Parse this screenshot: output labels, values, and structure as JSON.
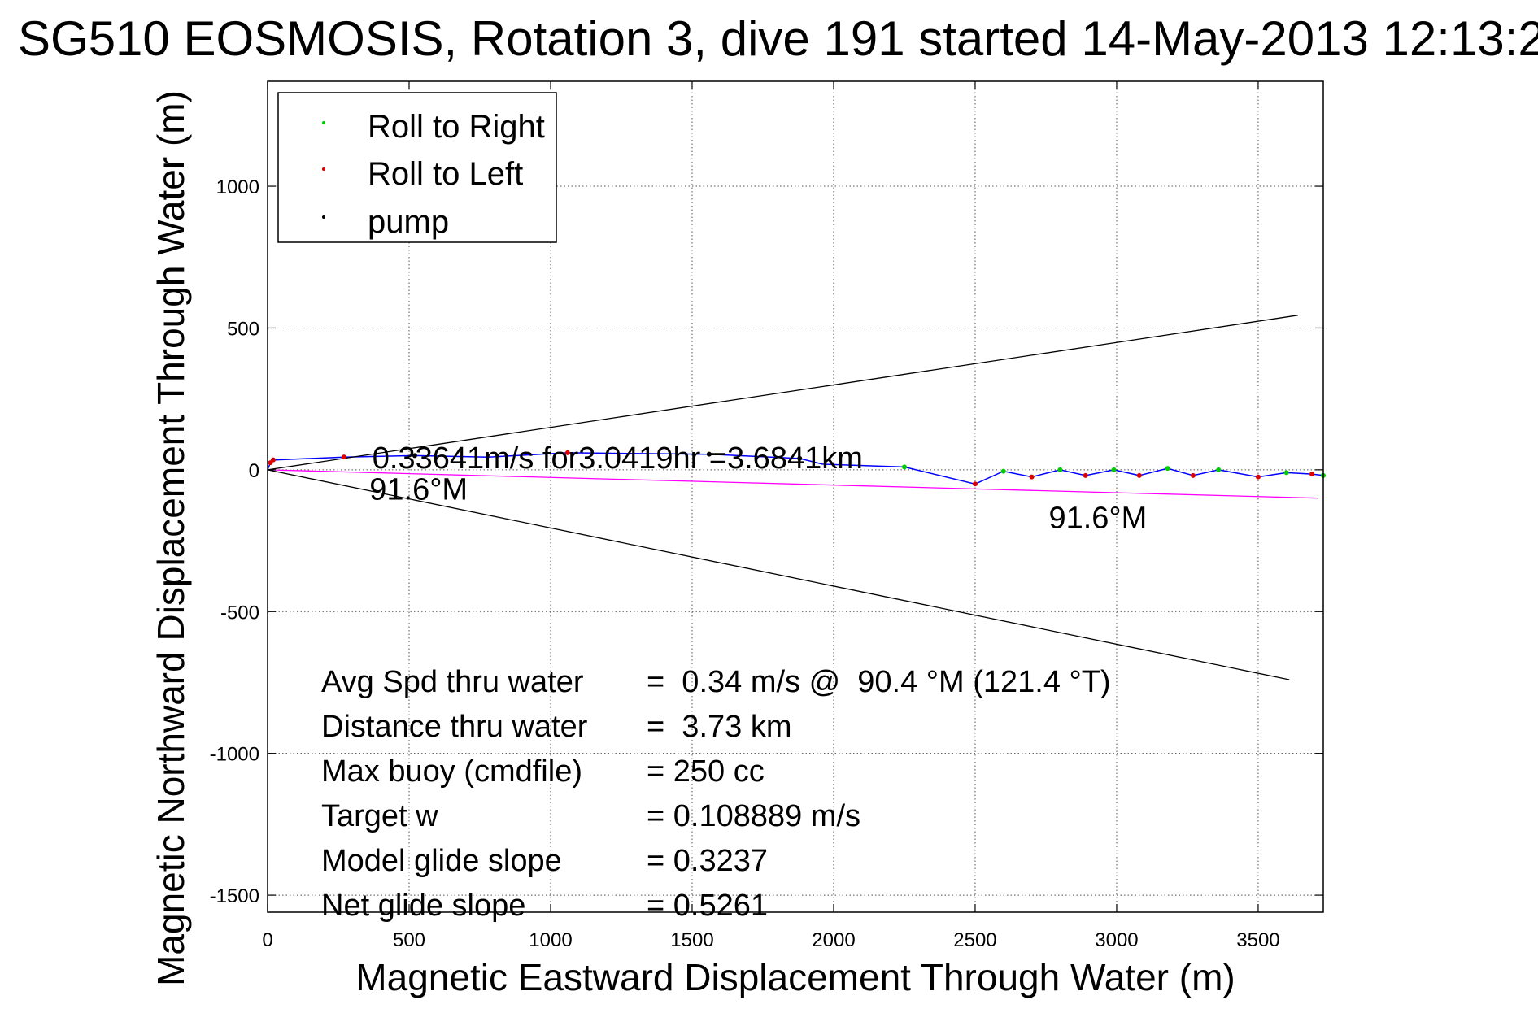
{
  "chart_data": {
    "type": "line",
    "title": "SG510 EOSMOSIS, Rotation 3, dive 191 started 14-May-2013 12:13:2",
    "xlabel": "Magnetic Eastward Displacement Through Water (m)",
    "ylabel": "Magnetic Northward Displacement Through Water (m)",
    "xlim": [
      0,
      3730
    ],
    "ylim": [
      -1560,
      1370
    ],
    "x_ticks": [
      0,
      500,
      1000,
      1500,
      2000,
      2500,
      3000,
      3500
    ],
    "y_ticks": [
      -1500,
      -1000,
      -500,
      0,
      500,
      1000
    ],
    "grid": true,
    "legend_position": "top-left",
    "legend": [
      {
        "label": "Roll to Right",
        "color": "#00cc00"
      },
      {
        "label": "Roll to Left",
        "color": "#dd0000"
      },
      {
        "label": "pump",
        "color": "#000000"
      }
    ],
    "series": [
      {
        "color": "#0000ff",
        "x": [
          0,
          8,
          18,
          28,
          270,
          520,
          780,
          1060,
          1560,
          1880,
          1960,
          2250,
          2500,
          2600,
          2700,
          2800,
          2890,
          2990,
          3080,
          3180,
          3270,
          3360,
          3500,
          3600,
          3690,
          3730
        ],
        "y": [
          0,
          20,
          40,
          35,
          45,
          50,
          45,
          60,
          55,
          40,
          20,
          10,
          -50,
          -5,
          -25,
          0,
          -20,
          0,
          -20,
          5,
          -20,
          0,
          -25,
          -10,
          -15,
          -20
        ]
      },
      {
        "color": "#ff00ff",
        "x": [
          0,
          3710
        ],
        "y": [
          0,
          -100
        ]
      },
      {
        "color": "#000000",
        "x": [
          0,
          3640
        ],
        "y": [
          0,
          545
        ]
      },
      {
        "color": "#000000",
        "x": [
          0,
          3610
        ],
        "y": [
          0,
          -740
        ]
      }
    ],
    "markers": {
      "roll_right": {
        "color": "#00cc00",
        "x": [
          2250,
          2600,
          2800,
          2990,
          3180,
          3360,
          3600,
          3730
        ],
        "y": [
          10,
          -5,
          0,
          0,
          5,
          0,
          -10,
          -20
        ]
      },
      "roll_left": {
        "color": "#dd0000",
        "x": [
          10,
          20,
          270,
          1060,
          2500,
          2700,
          2890,
          3080,
          3270,
          3500,
          3690
        ],
        "y": [
          25,
          35,
          45,
          60,
          -50,
          -25,
          -20,
          -20,
          -20,
          -25,
          -15
        ]
      },
      "pump": {
        "color": "#000000",
        "x": [
          520,
          1560,
          1880
        ],
        "y": [
          50,
          55,
          40
        ]
      }
    },
    "annotations": [
      {
        "text": "0.33641m/s for3.0419hr =3.6841km",
        "x": 370,
        "y": 5
      },
      {
        "text": "91.6°M",
        "x": 360,
        "y": -105
      },
      {
        "text": "91.6°M",
        "x": 2760,
        "y": -205
      }
    ],
    "stats": [
      {
        "label": "Avg Spd thru water",
        "value": "=  0.34 m/s @  90.4 °M (121.4 °T)"
      },
      {
        "label": "Distance thru water",
        "value": "=  3.73 km"
      },
      {
        "label": "Max buoy (cmdfile)",
        "value": "= 250 cc"
      },
      {
        "label": "Target w",
        "value": "= 0.108889 m/s"
      },
      {
        "label": "Model glide slope",
        "value": "= 0.3237"
      },
      {
        "label": "Net glide slope",
        "value": "= 0.5261"
      }
    ]
  }
}
